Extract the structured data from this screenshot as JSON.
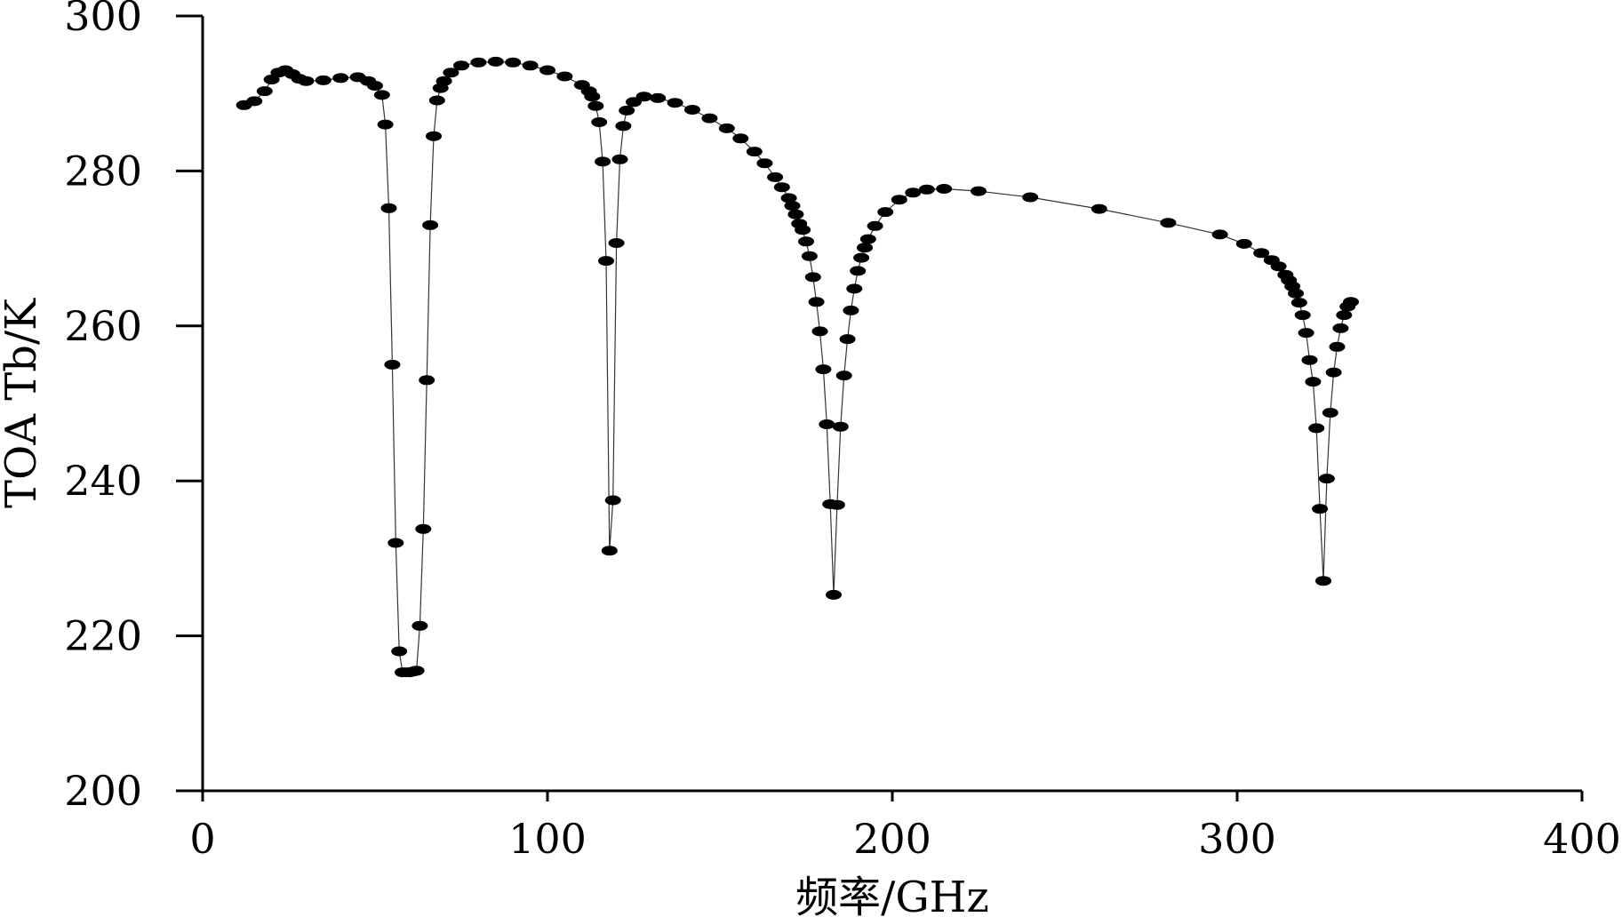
{
  "chart_data": {
    "type": "line",
    "title": "",
    "xlabel": "频率/GHz",
    "ylabel": "TOA Tb/K",
    "xlim": [
      0,
      400
    ],
    "ylim": [
      200,
      300
    ],
    "xticks": [
      0,
      100,
      200,
      300,
      400
    ],
    "yticks": [
      200,
      220,
      240,
      260,
      280,
      300
    ],
    "xtick_labels": [
      "0",
      "100",
      "200",
      "300",
      "400"
    ],
    "ytick_labels": [
      "200",
      "220",
      "240",
      "260",
      "280",
      "300"
    ],
    "grid": false,
    "legend": "none",
    "marker": "filled-ellipse",
    "colors": {
      "markers": "#000000",
      "line": "#333333",
      "axes": "#000000"
    },
    "series": [
      {
        "x": [
          12,
          15,
          18,
          20,
          22,
          24,
          26,
          28,
          30,
          35,
          40,
          45,
          48,
          50,
          52,
          53,
          54,
          55,
          56,
          57,
          58,
          59,
          60,
          61,
          62,
          63,
          64,
          65,
          66,
          67,
          68,
          69,
          70,
          72,
          75,
          80,
          85,
          90,
          95,
          100,
          105,
          110,
          112,
          113,
          114,
          115,
          116,
          117,
          118,
          119,
          120,
          121,
          122,
          123,
          125,
          128,
          132,
          137,
          142,
          147,
          152,
          156,
          160,
          163,
          166,
          168,
          170,
          171,
          172,
          173,
          174,
          175,
          176,
          177,
          178,
          179,
          180,
          181,
          182,
          183,
          184,
          185,
          186,
          187,
          188,
          189,
          190,
          191,
          192,
          193,
          195,
          198,
          202,
          206,
          210,
          215,
          225,
          240,
          260,
          280,
          295,
          302,
          307,
          310,
          312,
          314,
          315,
          316,
          317,
          318,
          319,
          320,
          321,
          322,
          323,
          324,
          325,
          326,
          327,
          328,
          329,
          330,
          331,
          332,
          333
        ],
        "y": [
          288.5,
          289.0,
          290.3,
          291.8,
          292.7,
          293.0,
          292.5,
          291.9,
          291.6,
          291.7,
          292.0,
          292.1,
          291.6,
          291.0,
          289.8,
          286.0,
          275.2,
          255.0,
          232.0,
          218.0,
          215.3,
          215.3,
          215.3,
          215.4,
          215.5,
          221.3,
          233.8,
          253.0,
          273.0,
          284.5,
          289.1,
          290.7,
          291.6,
          292.7,
          293.6,
          294.0,
          294.1,
          294.0,
          293.6,
          293.0,
          292.2,
          291.1,
          290.3,
          289.6,
          288.4,
          286.3,
          281.2,
          268.4,
          231.0,
          237.5,
          270.7,
          281.5,
          285.8,
          287.8,
          288.9,
          289.6,
          289.4,
          288.8,
          287.9,
          286.8,
          285.5,
          284.2,
          282.5,
          281.0,
          279.2,
          277.9,
          276.5,
          275.5,
          274.4,
          273.2,
          272.4,
          270.9,
          269.0,
          266.3,
          263.1,
          259.3,
          254.4,
          247.3,
          237.0,
          225.3,
          236.9,
          247.0,
          253.6,
          258.3,
          262.0,
          264.8,
          267.1,
          268.8,
          270.1,
          271.2,
          272.9,
          274.7,
          276.3,
          277.2,
          277.6,
          277.7,
          277.4,
          276.6,
          275.1,
          273.3,
          271.8,
          270.6,
          269.4,
          268.5,
          267.7,
          266.6,
          265.9,
          265.1,
          264.2,
          263.0,
          261.4,
          259.1,
          255.6,
          252.8,
          246.8,
          236.4,
          227.1,
          240.3,
          248.8,
          254.0,
          257.3,
          259.7,
          261.4,
          262.5,
          263.1
        ]
      }
    ]
  }
}
